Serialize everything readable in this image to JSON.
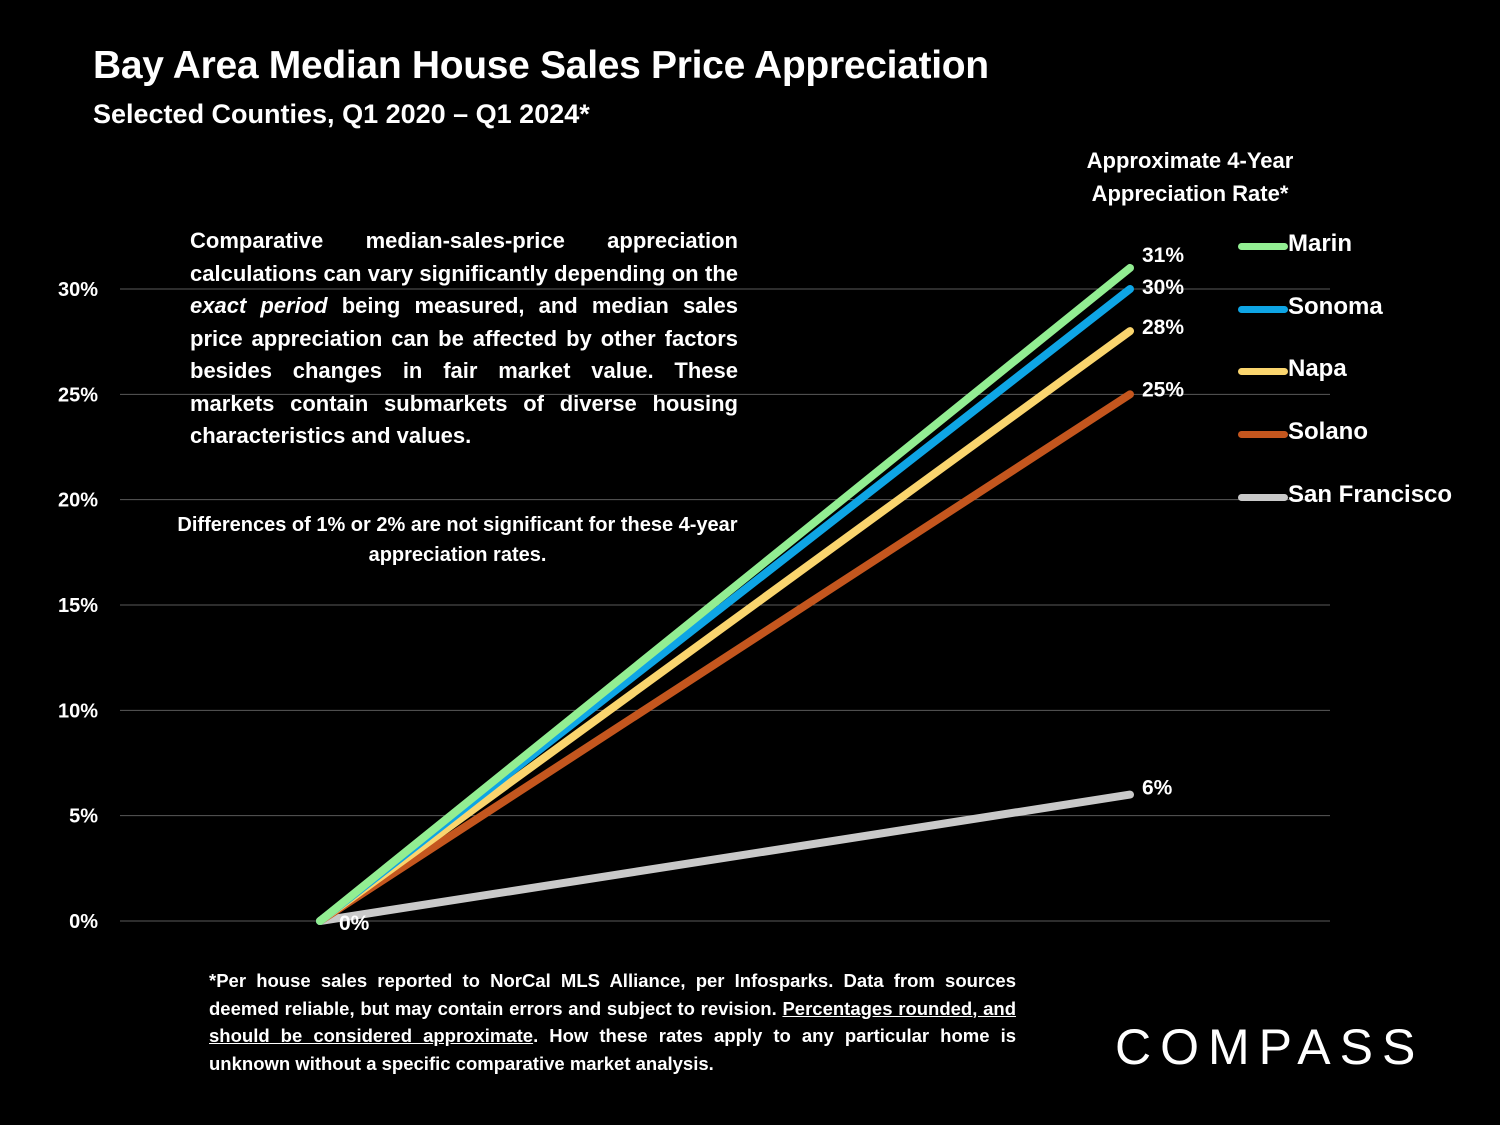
{
  "title": "Bay Area Median House Sales Price Appreciation",
  "subtitle": "Selected Counties, Q1 2020 – Q1 2024*",
  "rate_header_line1": "Approximate 4-Year",
  "rate_header_line2": "Appreciation Rate*",
  "note1": {
    "part1": "Comparative median-sales-price appreciation calculations can vary significantly depending on the ",
    "emph": "exact period",
    "part2": " being measured, and median sales price appreciation can be affected by other factors besides changes in fair market value. These markets contain submarkets of diverse housing characteristics and values."
  },
  "note2": "Differences of 1% or 2% are not significant for these 4-year appreciation rates.",
  "footnote": {
    "part1": "*Per house sales reported to NorCal MLS Alliance, per Infosparks. Data from sources deemed reliable, but may contain errors and subject to revision. ",
    "underlined": "Percentages rounded, and should be considered approximate",
    "part2": ". How these rates apply to any particular home is unknown without a specific comparative market analysis."
  },
  "logo": "COMPASS",
  "chart_data": {
    "type": "line",
    "title": "Bay Area Median House Sales Price Appreciation",
    "subtitle": "Selected Counties, Q1 2020 – Q1 2024*",
    "x": [
      "Q1 2020",
      "Q1 2024"
    ],
    "ylim": [
      0,
      30
    ],
    "yticks": [
      "0%",
      "5%",
      "10%",
      "15%",
      "20%",
      "25%",
      "30%"
    ],
    "ytick_values": [
      0,
      5,
      10,
      15,
      20,
      25,
      30
    ],
    "grid": true,
    "legend_position": "right",
    "start_label": "0%",
    "series": [
      {
        "name": "Marin",
        "values": [
          0,
          31
        ],
        "end_label": "31%",
        "color": "#92EE92"
      },
      {
        "name": "Sonoma",
        "values": [
          0,
          30
        ],
        "end_label": "30%",
        "color": "#0EA5E5"
      },
      {
        "name": "Napa",
        "values": [
          0,
          28
        ],
        "end_label": "28%",
        "color": "#FAD56E"
      },
      {
        "name": "Solano",
        "values": [
          0,
          25
        ],
        "end_label": "25%",
        "color": "#C4561E"
      },
      {
        "name": "San Francisco",
        "values": [
          0,
          6
        ],
        "end_label": "6%",
        "color": "#C9C9C9"
      }
    ]
  }
}
